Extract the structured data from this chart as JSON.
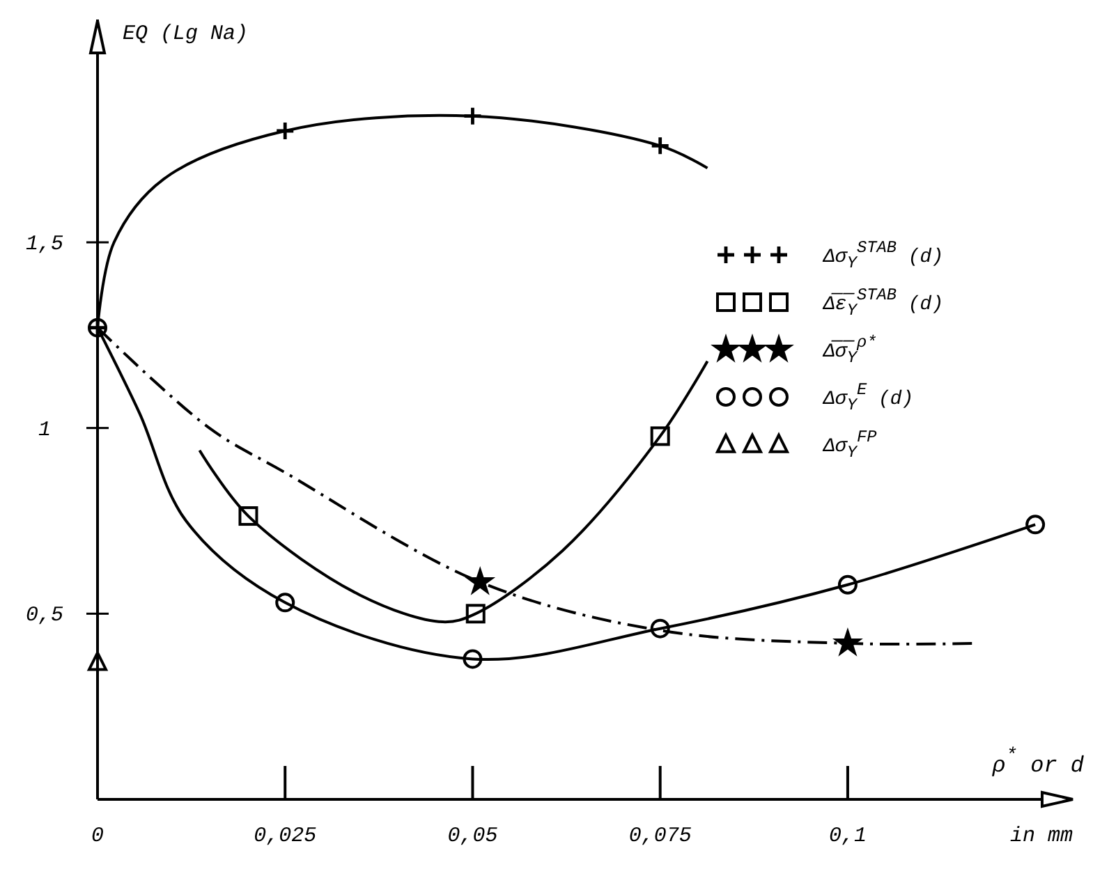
{
  "chart_data": {
    "type": "line",
    "ylabel": "EQ (Lg Na)",
    "xlabel": "ρ$^{*}$ or d",
    "annotations": [
      "in mm"
    ],
    "xlim": [
      0,
      0.13
    ],
    "ylim": [
      0,
      2.1
    ],
    "xticks": [
      {
        "value": 0,
        "label": "0"
      },
      {
        "value": 0.025,
        "label": "0,025"
      },
      {
        "value": 0.05,
        "label": "0,05"
      },
      {
        "value": 0.075,
        "label": "0,075"
      },
      {
        "value": 0.1,
        "label": "0,1"
      }
    ],
    "yticks": [
      {
        "value": 0.5,
        "label": "0,5"
      },
      {
        "value": 1,
        "label": "1"
      },
      {
        "value": 1.5,
        "label": "1,5"
      }
    ],
    "legend": "right",
    "grid": false,
    "series": [
      {
        "type": "line",
        "color": "#000000",
        "marker": "none",
        "line_style": "solid",
        "x": [
          0,
          0.0022,
          0.0088,
          0.025,
          0.05,
          0.075,
          0.0813
        ],
        "values": [
          1.27,
          1.5,
          1.67,
          1.8,
          1.84,
          1.76,
          1.7
        ]
      },
      {
        "type": "scatter",
        "name": "Δσ$_{Y}$$^{STAB}$ (d)",
        "color": "#000000",
        "marker": "cross",
        "x": [
          0.025,
          0.05,
          0.075,
          0
        ],
        "values": [
          1.8,
          1.84,
          1.76,
          1.27
        ]
      },
      {
        "type": "line",
        "color": "#000000",
        "marker": "none",
        "line_style": "solid",
        "x": [
          0.0136,
          0.0201,
          0.035,
          0.046,
          0.0504,
          0.062,
          0.075,
          0.0813
        ],
        "values": [
          0.94,
          0.763,
          0.55,
          0.478,
          0.5,
          0.67,
          0.978,
          1.18
        ]
      },
      {
        "type": "scatter",
        "name": "Δ̅ε̅$_{Y}$$^{STAB}$ (d)",
        "color": "#000000",
        "marker": "square",
        "x": [
          0.0201,
          0.0504,
          0.075
        ],
        "values": [
          0.763,
          0.5,
          0.978
        ]
      },
      {
        "type": "line",
        "color": "#000000",
        "marker": "none",
        "line_style": "dashed",
        "x": [
          0,
          0.0149,
          0.025,
          0.051,
          0.075,
          0.1,
          0.117
        ],
        "values": [
          1.27,
          1.0,
          0.88,
          0.585,
          0.455,
          0.42,
          0.42
        ]
      },
      {
        "type": "scatter",
        "name": "Δ̅σ̅$_{Y}$$^{ρ*}$",
        "color": "#000000",
        "marker": "star",
        "x": [
          0.051,
          0.1
        ],
        "values": [
          0.585,
          0.42
        ]
      },
      {
        "type": "line",
        "color": "#000000",
        "marker": "none",
        "line_style": "solid",
        "x": [
          0,
          0.0056,
          0.0118,
          0.025,
          0.05,
          0.075,
          0.1,
          0.125
        ],
        "values": [
          1.27,
          1.04,
          0.75,
          0.53,
          0.378,
          0.46,
          0.578,
          0.74
        ]
      },
      {
        "type": "scatter",
        "name": "Δσ$_{Y}$$^{E}$ (d)",
        "color": "#000000",
        "marker": "circle",
        "x": [
          0.025,
          0.05,
          0.075,
          0.1,
          0.125,
          0
        ],
        "values": [
          0.53,
          0.378,
          0.46,
          0.578,
          0.74,
          1.27
        ]
      },
      {
        "type": "scatter",
        "name": "Δσ$_{Y}$$^{FP}$",
        "color": "#000000",
        "marker": "triangle",
        "x": [
          0
        ],
        "values": [
          0.37
        ]
      }
    ]
  }
}
